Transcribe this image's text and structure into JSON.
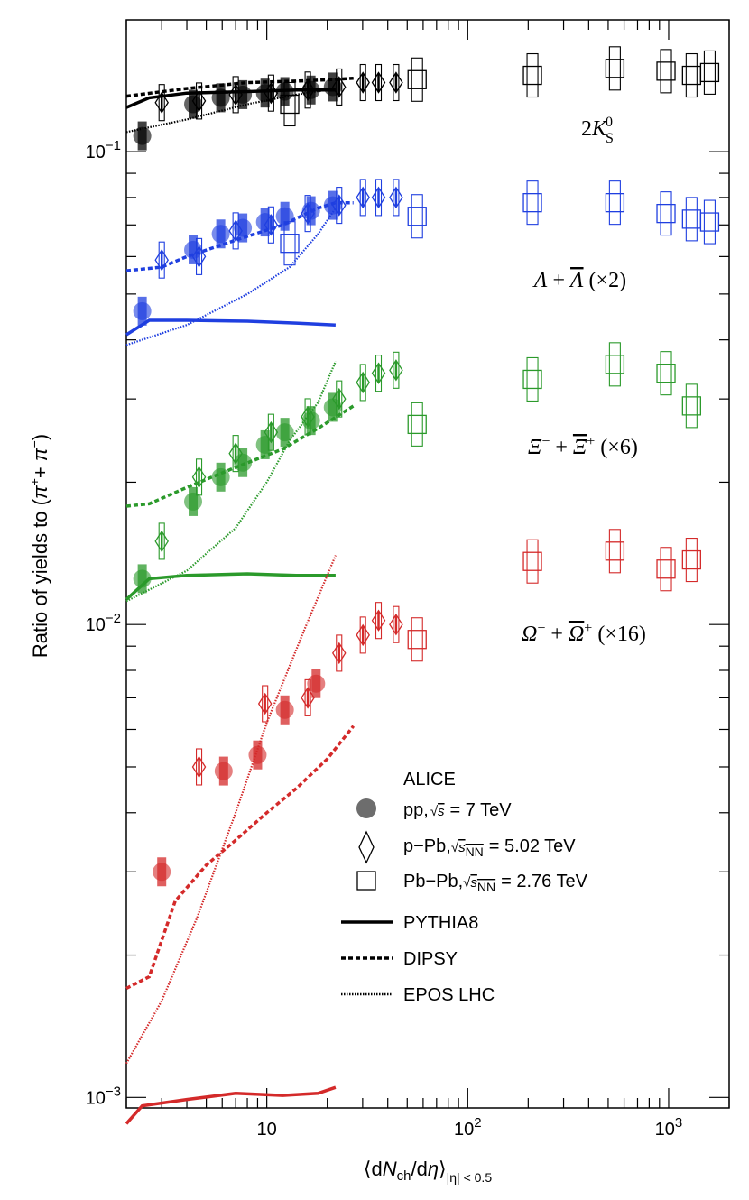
{
  "chart_data": {
    "type": "scatter",
    "xscale": "log",
    "yscale": "log",
    "xlim": [
      2,
      2000
    ],
    "ylim": [
      0.00095,
      0.19
    ],
    "xlabel": "⟨dN_ch/dη⟩_|η| < 0.5",
    "ylabel": "Ratio of yields to (π⁺+ π⁻)",
    "xticks": [
      {
        "v": 10,
        "base": "10",
        "exp": ""
      },
      {
        "v": 100,
        "base": "10",
        "exp": "2"
      },
      {
        "v": 1000,
        "base": "10",
        "exp": "3"
      }
    ],
    "yticks": [
      {
        "v": 0.1,
        "base": "10",
        "exp": "−1"
      },
      {
        "v": 0.01,
        "base": "10",
        "exp": "−2"
      },
      {
        "v": 0.001,
        "base": "10",
        "exp": "−3"
      }
    ],
    "species": [
      {
        "label": "2K⁰S",
        "color": "#000000",
        "pp": [
          [
            2.4,
            0.108
          ],
          [
            4.3,
            0.126
          ],
          [
            5.9,
            0.13
          ],
          [
            7.6,
            0.132
          ],
          [
            9.8,
            0.133
          ],
          [
            12.3,
            0.134
          ],
          [
            16.6,
            0.135
          ],
          [
            21.3,
            0.137
          ]
        ],
        "ppb": [
          [
            3.0,
            0.127
          ],
          [
            4.6,
            0.128
          ],
          [
            7.0,
            0.132
          ],
          [
            10.5,
            0.133
          ],
          [
            16.0,
            0.135
          ],
          [
            22.9,
            0.137
          ],
          [
            30.1,
            0.14
          ],
          [
            36.0,
            0.14
          ],
          [
            44.0,
            0.14
          ]
        ],
        "pbpb": [
          [
            13.0,
            0.126
          ],
          [
            56,
            0.142
          ],
          [
            210,
            0.145
          ],
          [
            540,
            0.15
          ],
          [
            970,
            0.148
          ],
          [
            1300,
            0.145
          ],
          [
            1600,
            0.147
          ]
        ],
        "pythia": [
          [
            2.0,
            0.124
          ],
          [
            2.6,
            0.13
          ],
          [
            4.0,
            0.133
          ],
          [
            8,
            0.134
          ],
          [
            14,
            0.135
          ],
          [
            22,
            0.135
          ]
        ],
        "dipsy": [
          [
            2.0,
            0.131
          ],
          [
            4,
            0.136
          ],
          [
            8,
            0.14
          ],
          [
            14,
            0.141
          ],
          [
            21,
            0.142
          ],
          [
            27,
            0.143
          ]
        ],
        "epos": [
          [
            2.0,
            0.11
          ],
          [
            4,
            0.117
          ],
          [
            8,
            0.126
          ],
          [
            14,
            0.132
          ],
          [
            22,
            0.136
          ]
        ]
      },
      {
        "label": "Λ + Λ̄ (×2)",
        "color": "#1f3fe0",
        "pp": [
          [
            2.4,
            0.046
          ],
          [
            4.3,
            0.062
          ],
          [
            5.9,
            0.067
          ],
          [
            7.6,
            0.069
          ],
          [
            9.8,
            0.071
          ],
          [
            12.3,
            0.073
          ],
          [
            16.6,
            0.075
          ],
          [
            21.3,
            0.077
          ]
        ],
        "ppb": [
          [
            3.0,
            0.059
          ],
          [
            4.6,
            0.06
          ],
          [
            7.0,
            0.068
          ],
          [
            10.5,
            0.07
          ],
          [
            16.0,
            0.074
          ],
          [
            22.9,
            0.077
          ],
          [
            30.1,
            0.08
          ],
          [
            36.0,
            0.08
          ],
          [
            44.0,
            0.08
          ]
        ],
        "pbpb": [
          [
            13.0,
            0.064
          ],
          [
            56,
            0.073
          ],
          [
            210,
            0.078
          ],
          [
            540,
            0.078
          ],
          [
            970,
            0.074
          ],
          [
            1300,
            0.072
          ],
          [
            1600,
            0.071
          ]
        ],
        "pythia": [
          [
            2.0,
            0.041
          ],
          [
            2.6,
            0.044
          ],
          [
            4,
            0.044
          ],
          [
            8,
            0.0438
          ],
          [
            14,
            0.0434
          ],
          [
            22,
            0.043
          ]
        ],
        "dipsy": [
          [
            2.0,
            0.056
          ],
          [
            3,
            0.057
          ],
          [
            4,
            0.06
          ],
          [
            7,
            0.065
          ],
          [
            12,
            0.07
          ],
          [
            18,
            0.076
          ],
          [
            22,
            0.078
          ],
          [
            27,
            0.078
          ]
        ],
        "epos": [
          [
            2.0,
            0.039
          ],
          [
            4,
            0.043
          ],
          [
            8,
            0.05
          ],
          [
            13,
            0.057
          ],
          [
            18,
            0.067
          ],
          [
            22,
            0.076
          ]
        ]
      },
      {
        "label": "Ξ⁻ + Ξ̄⁺ (×6)",
        "color": "#2b9a2b",
        "pp": [
          [
            2.4,
            0.0125
          ],
          [
            4.3,
            0.0182
          ],
          [
            5.9,
            0.0205
          ],
          [
            7.6,
            0.022
          ],
          [
            9.8,
            0.024
          ],
          [
            12.3,
            0.0255
          ],
          [
            16.6,
            0.027
          ],
          [
            21.3,
            0.0288
          ]
        ],
        "ppb": [
          [
            3.0,
            0.015
          ],
          [
            4.6,
            0.0205
          ],
          [
            7.0,
            0.023
          ],
          [
            10.5,
            0.0255
          ],
          [
            16.0,
            0.0275
          ],
          [
            22.9,
            0.03
          ],
          [
            30.1,
            0.0325
          ],
          [
            36.0,
            0.034
          ],
          [
            44.0,
            0.0345
          ]
        ],
        "pbpb": [
          [
            56,
            0.0265
          ],
          [
            210,
            0.033
          ],
          [
            540,
            0.0355
          ],
          [
            970,
            0.034
          ],
          [
            1300,
            0.029
          ]
        ],
        "pythia": [
          [
            2.0,
            0.0113
          ],
          [
            2.6,
            0.0125
          ],
          [
            4,
            0.0127
          ],
          [
            8,
            0.0128
          ],
          [
            14,
            0.0127
          ],
          [
            22,
            0.0127
          ]
        ],
        "dipsy": [
          [
            2.0,
            0.0178
          ],
          [
            2.6,
            0.018
          ],
          [
            4,
            0.0195
          ],
          [
            7,
            0.0215
          ],
          [
            12,
            0.0235
          ],
          [
            18,
            0.026
          ],
          [
            27,
            0.029
          ]
        ],
        "epos": [
          [
            2.0,
            0.0112
          ],
          [
            4,
            0.013
          ],
          [
            7,
            0.016
          ],
          [
            10,
            0.02
          ],
          [
            13,
            0.0245
          ],
          [
            18,
            0.0295
          ],
          [
            22,
            0.036
          ]
        ]
      },
      {
        "label": "Ω⁻ + Ω̄⁺ (×16)",
        "color": "#d42a2a",
        "pp": [
          [
            3.0,
            0.003
          ],
          [
            6.1,
            0.0049
          ],
          [
            9.0,
            0.0053
          ],
          [
            12.3,
            0.0066
          ],
          [
            17.6,
            0.0075
          ]
        ],
        "ppb": [
          [
            4.6,
            0.005
          ],
          [
            9.8,
            0.0068
          ],
          [
            16.0,
            0.007
          ],
          [
            22.9,
            0.0087
          ],
          [
            30.1,
            0.0095
          ],
          [
            36.0,
            0.0102
          ],
          [
            44.0,
            0.01
          ]
        ],
        "pbpb": [
          [
            56,
            0.0093
          ],
          [
            210,
            0.0136
          ],
          [
            540,
            0.0143
          ],
          [
            970,
            0.0131
          ],
          [
            1300,
            0.0137
          ]
        ],
        "pythia": [
          [
            2.0,
            0.00088
          ],
          [
            2.4,
            0.00096
          ],
          [
            4,
            0.00099
          ],
          [
            7,
            0.00102
          ],
          [
            12,
            0.00101
          ],
          [
            18,
            0.00102
          ],
          [
            22,
            0.00105
          ]
        ],
        "dipsy": [
          [
            2.0,
            0.0017
          ],
          [
            2.6,
            0.0018
          ],
          [
            3.5,
            0.0026
          ],
          [
            5,
            0.0031
          ],
          [
            7,
            0.0035
          ],
          [
            10,
            0.004
          ],
          [
            14,
            0.0045
          ],
          [
            20,
            0.0052
          ],
          [
            27,
            0.0061
          ]
        ],
        "epos": [
          [
            2.0,
            0.00118
          ],
          [
            3,
            0.0016
          ],
          [
            4.5,
            0.0024
          ],
          [
            7,
            0.004
          ],
          [
            10,
            0.0062
          ],
          [
            15,
            0.0095
          ],
          [
            22,
            0.014
          ]
        ]
      }
    ],
    "legend": {
      "title": "ALICE",
      "pp_label": "pp,",
      "pp_energy": "= 7 TeV",
      "ppb_label": "p−Pb,",
      "ppb_energy": "= 5.02 TeV",
      "pbpb_label": "Pb−Pb,",
      "pbpb_energy": "= 2.76 TeV",
      "pythia_label": "PYTHIA8",
      "dipsy_label": "DIPSY",
      "epos_label": "EPOS LHC"
    }
  }
}
